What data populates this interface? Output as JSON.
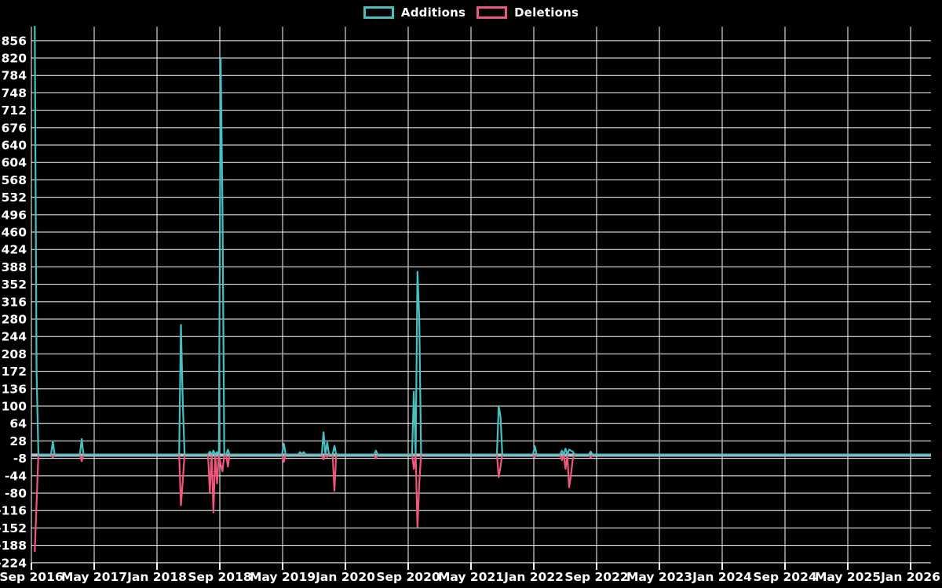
{
  "chart_data": {
    "type": "line",
    "title": "",
    "legend_items": [
      {
        "label": "Additions",
        "color": "#45c1c1"
      },
      {
        "label": "Deletions",
        "color": "#ef567b"
      }
    ],
    "colors": {
      "additions": "#45c1c1",
      "deletions": "#ef567b",
      "grid": "#ffffff",
      "text": "#ffffff",
      "background": "#000000",
      "zero_band": "#a9c7d1"
    },
    "grid": true,
    "legend_position": "top-center",
    "y_axis": {
      "min": -224,
      "max": 856,
      "step": 36,
      "tick_labels": [
        "856",
        "820",
        "784",
        "748",
        "712",
        "676",
        "640",
        "604",
        "568",
        "532",
        "496",
        "460",
        "424",
        "388",
        "352",
        "316",
        "280",
        "244",
        "208",
        "172",
        "136",
        "100",
        "64",
        "28",
        "-8",
        "-44",
        "-80",
        "-116",
        "-152",
        "-188",
        "-224"
      ]
    },
    "x_axis": {
      "interval_months": 8,
      "tick_labels": [
        "Sep 2016",
        "May 2017",
        "Jan 2018",
        "Sep 2018",
        "May 2019",
        "Jan 2020",
        "Sep 2020",
        "May 2021",
        "Jan 2022",
        "Sep 2022",
        "May 2023",
        "Jan 2024",
        "Sep 2024",
        "May 2025",
        "Jan 2026"
      ]
    },
    "timeline": {
      "start": "2016-09-14",
      "end": "2026-03-15",
      "step_days": 7,
      "default_value": 0
    },
    "note": "first Additions spike (2016-09-14) is clipped at the top of the plot area (exceeds 856)",
    "series": [
      {
        "name": "Additions",
        "color": "#45c1c1",
        "points": [
          [
            "2016-09-14",
            890
          ],
          [
            "2016-09-21",
            170
          ],
          [
            "2016-11-22",
            27
          ],
          [
            "2017-03-10",
            32
          ],
          [
            "2018-04-05",
            268
          ],
          [
            "2018-04-12",
            110
          ],
          [
            "2018-07-25",
            6
          ],
          [
            "2018-08-05",
            8
          ],
          [
            "2018-08-19",
            5
          ],
          [
            "2018-09-02",
            820
          ],
          [
            "2018-09-09",
            510
          ],
          [
            "2018-10-01",
            10
          ],
          [
            "2019-05-06",
            22
          ],
          [
            "2019-07-10",
            5
          ],
          [
            "2019-07-22",
            5
          ],
          [
            "2019-10-07",
            46
          ],
          [
            "2019-10-20",
            25
          ],
          [
            "2019-11-22",
            18
          ],
          [
            "2020-04-25",
            8
          ],
          [
            "2020-09-25",
            130
          ],
          [
            "2020-10-04",
            378
          ],
          [
            "2020-10-11",
            280
          ],
          [
            "2021-08-16",
            100
          ],
          [
            "2021-08-23",
            78
          ],
          [
            "2022-01-07",
            17
          ],
          [
            "2022-04-22",
            8
          ],
          [
            "2022-05-03",
            12
          ],
          [
            "2022-05-15",
            10
          ],
          [
            "2022-05-24",
            8
          ],
          [
            "2022-06-03",
            6
          ],
          [
            "2022-08-06",
            6
          ]
        ]
      },
      {
        "name": "Deletions",
        "color": "#ef567b",
        "points": [
          [
            "2016-09-14",
            -200
          ],
          [
            "2016-09-21",
            -100
          ],
          [
            "2016-11-22",
            -6
          ],
          [
            "2017-03-10",
            -14
          ],
          [
            "2018-04-05",
            -105
          ],
          [
            "2018-04-12",
            -55
          ],
          [
            "2018-07-25",
            -78
          ],
          [
            "2018-08-05",
            -120
          ],
          [
            "2018-08-19",
            -60
          ],
          [
            "2018-09-02",
            -20
          ],
          [
            "2018-09-09",
            -35
          ],
          [
            "2018-10-01",
            -25
          ],
          [
            "2019-05-06",
            -15
          ],
          [
            "2019-10-07",
            -10
          ],
          [
            "2019-10-20",
            -5
          ],
          [
            "2019-11-22",
            -75
          ],
          [
            "2020-04-25",
            -8
          ],
          [
            "2020-09-25",
            -30
          ],
          [
            "2020-10-04",
            -150
          ],
          [
            "2020-10-11",
            -60
          ],
          [
            "2021-08-16",
            -47
          ],
          [
            "2021-08-23",
            -25
          ],
          [
            "2022-01-07",
            -5
          ],
          [
            "2022-04-22",
            -12
          ],
          [
            "2022-05-03",
            -30
          ],
          [
            "2022-05-15",
            -68
          ],
          [
            "2022-05-24",
            -43
          ],
          [
            "2022-06-03",
            -10
          ],
          [
            "2022-08-06",
            -6
          ]
        ]
      }
    ]
  }
}
